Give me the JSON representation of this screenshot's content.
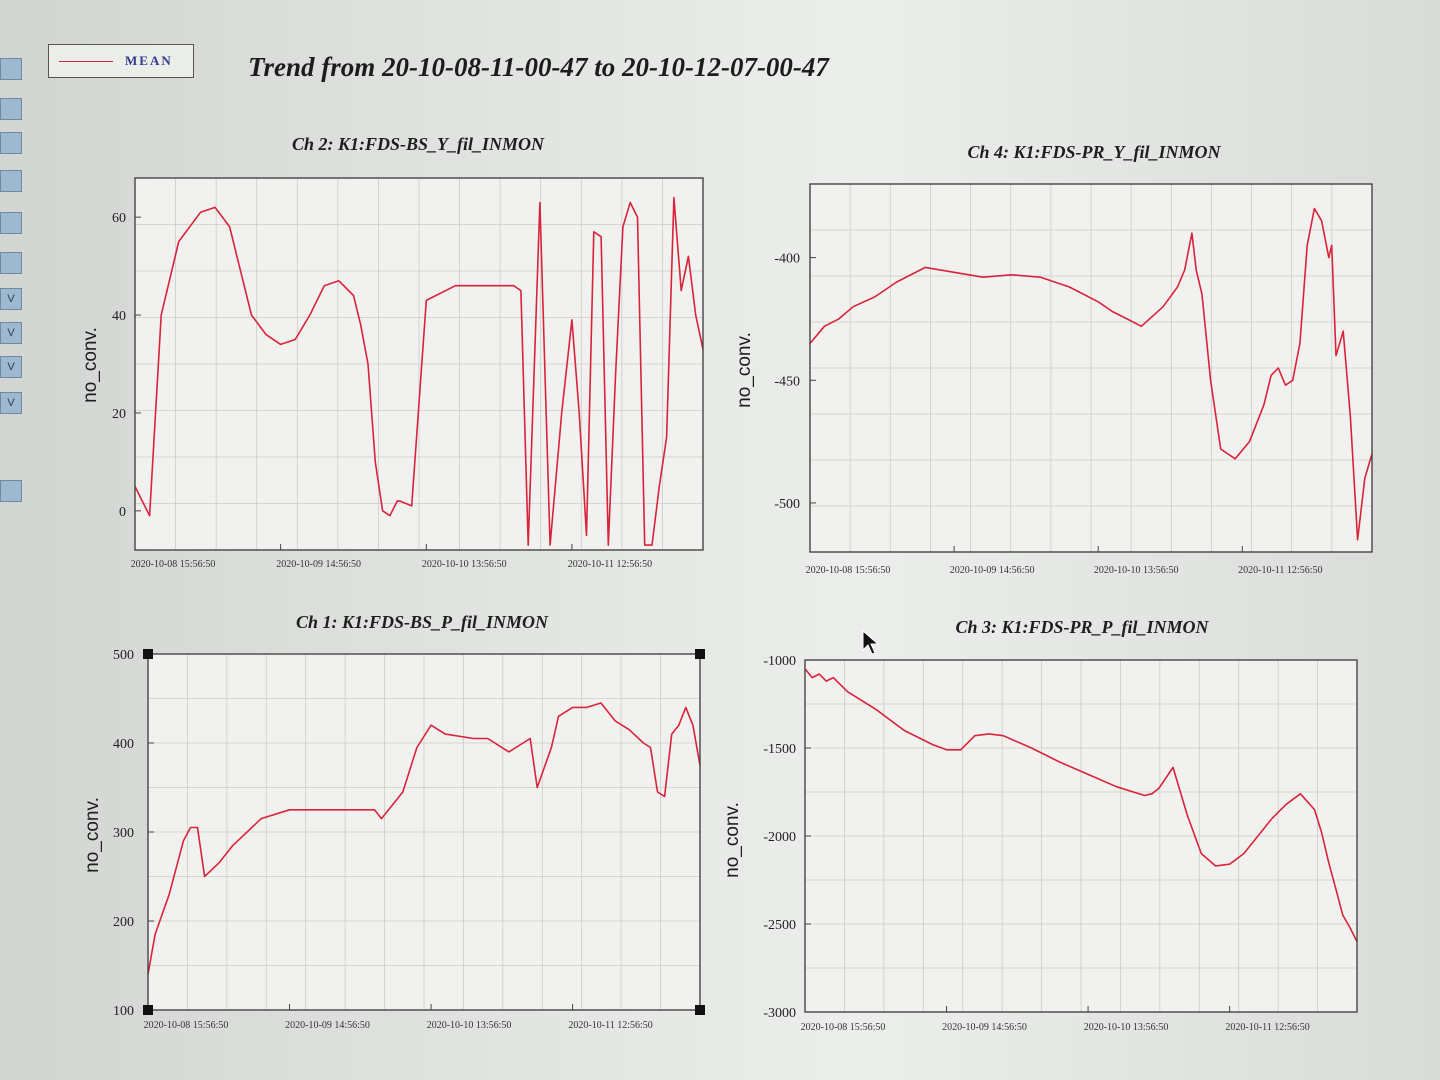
{
  "window": {
    "title": "Trend from 20-10-08-11-00-47 to 20-10-12-07-00-47",
    "legend_label": "MEAN"
  },
  "colors": {
    "series": "#d9233a",
    "frame": "#444444",
    "grid": "#c8ccc8"
  },
  "toolbar": {
    "buttons": [
      "",
      "",
      "",
      "",
      "",
      "",
      "V",
      "V",
      "V",
      "V",
      ""
    ]
  },
  "chart_data": [
    {
      "type": "line",
      "title": "Ch 2: K1:FDS-BS_Y_fil_INMON",
      "ylabel": "no_conv.",
      "xlabel": "",
      "ylim": [
        -8,
        68
      ],
      "yticks": [
        0,
        20,
        40,
        60
      ],
      "xticks": [
        {
          "t": 0.0,
          "label": "2020-10-08 15:56:50"
        },
        {
          "t": 1.0,
          "label": "2020-10-09 14:56:50"
        },
        {
          "t": 2.0,
          "label": "2020-10-10 13:56:50"
        },
        {
          "t": 3.0,
          "label": "2020-10-11 12:56:50"
        }
      ],
      "xlim": [
        0,
        3.9
      ],
      "grid": true,
      "series": [
        {
          "name": "MEAN",
          "x": [
            0,
            0.05,
            0.1,
            0.18,
            0.3,
            0.45,
            0.55,
            0.65,
            0.7,
            0.8,
            0.9,
            1.0,
            1.1,
            1.2,
            1.3,
            1.4,
            1.5,
            1.55,
            1.6,
            1.65,
            1.7,
            1.75,
            1.8,
            1.82,
            1.9,
            2.0,
            2.2,
            2.4,
            2.55,
            2.6,
            2.65,
            2.7,
            2.78,
            2.85,
            2.93,
            3.0,
            3.05,
            3.1,
            3.15,
            3.2,
            3.25,
            3.3,
            3.35,
            3.4,
            3.45,
            3.5,
            3.55,
            3.6,
            3.65,
            3.7,
            3.75,
            3.8,
            3.85,
            3.9
          ],
          "y": [
            5,
            2,
            -1,
            40,
            55,
            61,
            62,
            58,
            52,
            40,
            36,
            34,
            35,
            40,
            46,
            47,
            44,
            38,
            30,
            10,
            0,
            -1,
            2,
            2,
            1,
            43,
            46,
            46,
            46,
            46,
            45,
            -7,
            63,
            -7,
            20,
            39,
            20,
            -5,
            57,
            56,
            -7,
            28,
            58,
            63,
            60,
            -7,
            -7,
            5,
            15,
            64,
            45,
            52,
            40,
            33
          ]
        }
      ]
    },
    {
      "type": "line",
      "title": "Ch 4: K1:FDS-PR_Y_fil_INMON",
      "ylabel": "no_conv.",
      "xlabel": "",
      "ylim": [
        -520,
        -370
      ],
      "yticks": [
        -400,
        -450,
        -500
      ],
      "xticks": [
        {
          "t": 0.0,
          "label": "2020-10-08 15:56:50"
        },
        {
          "t": 1.0,
          "label": "2020-10-09 14:56:50"
        },
        {
          "t": 2.0,
          "label": "2020-10-10 13:56:50"
        },
        {
          "t": 3.0,
          "label": "2020-10-11 12:56:50"
        }
      ],
      "xlim": [
        0,
        3.9
      ],
      "grid": true,
      "series": [
        {
          "name": "MEAN",
          "x": [
            0,
            0.1,
            0.2,
            0.3,
            0.45,
            0.6,
            0.8,
            1.0,
            1.2,
            1.4,
            1.6,
            1.8,
            2.0,
            2.1,
            2.2,
            2.3,
            2.45,
            2.55,
            2.6,
            2.65,
            2.68,
            2.72,
            2.78,
            2.85,
            2.95,
            3.05,
            3.15,
            3.2,
            3.25,
            3.3,
            3.35,
            3.4,
            3.45,
            3.5,
            3.55,
            3.6,
            3.62,
            3.65,
            3.7,
            3.75,
            3.8,
            3.85,
            3.9
          ],
          "y": [
            -435,
            -428,
            -425,
            -420,
            -416,
            -410,
            -404,
            -406,
            -408,
            -407,
            -408,
            -412,
            -418,
            -422,
            -425,
            -428,
            -420,
            -412,
            -405,
            -390,
            -405,
            -415,
            -450,
            -478,
            -482,
            -475,
            -460,
            -448,
            -445,
            -452,
            -450,
            -435,
            -395,
            -380,
            -385,
            -400,
            -395,
            -440,
            -430,
            -465,
            -515,
            -490,
            -480
          ]
        }
      ]
    },
    {
      "type": "line",
      "title": "Ch 1: K1:FDS-BS_P_fil_INMON",
      "ylabel": "no_conv.",
      "xlabel": "",
      "ylim": [
        100,
        500
      ],
      "yticks": [
        100,
        200,
        300,
        400,
        500
      ],
      "xticks": [
        {
          "t": 0.0,
          "label": "2020-10-08 15:56:50"
        },
        {
          "t": 1.0,
          "label": "2020-10-09 14:56:50"
        },
        {
          "t": 2.0,
          "label": "2020-10-10 13:56:50"
        },
        {
          "t": 3.0,
          "label": "2020-10-11 12:56:50"
        }
      ],
      "xlim": [
        0,
        3.9
      ],
      "grid": true,
      "series": [
        {
          "name": "MEAN",
          "x": [
            0,
            0.05,
            0.15,
            0.25,
            0.3,
            0.35,
            0.4,
            0.5,
            0.6,
            0.8,
            1.0,
            1.2,
            1.4,
            1.6,
            1.65,
            1.8,
            1.9,
            2.0,
            2.1,
            2.3,
            2.4,
            2.55,
            2.65,
            2.7,
            2.75,
            2.85,
            2.9,
            3.0,
            3.1,
            3.2,
            3.3,
            3.4,
            3.5,
            3.55,
            3.6,
            3.65,
            3.7,
            3.75,
            3.8,
            3.85,
            3.9
          ],
          "y": [
            140,
            185,
            230,
            290,
            305,
            305,
            250,
            265,
            285,
            315,
            325,
            325,
            325,
            325,
            315,
            345,
            395,
            420,
            410,
            405,
            405,
            390,
            400,
            405,
            350,
            395,
            430,
            440,
            440,
            445,
            425,
            415,
            400,
            395,
            345,
            340,
            410,
            420,
            440,
            420,
            375
          ]
        }
      ]
    },
    {
      "type": "line",
      "title": "Ch 3: K1:FDS-PR_P_fil_INMON",
      "ylabel": "no_conv.",
      "xlabel": "",
      "ylim": [
        -3000,
        -1000
      ],
      "yticks": [
        -1000,
        -1500,
        -2000,
        -2500,
        -3000
      ],
      "xticks": [
        {
          "t": 0.0,
          "label": "2020-10-08 15:56:50"
        },
        {
          "t": 1.0,
          "label": "2020-10-09 14:56:50"
        },
        {
          "t": 2.0,
          "label": "2020-10-10 13:56:50"
        },
        {
          "t": 3.0,
          "label": "2020-10-11 12:56:50"
        }
      ],
      "xlim": [
        0,
        3.9
      ],
      "grid": true,
      "series": [
        {
          "name": "MEAN",
          "x": [
            0,
            0.05,
            0.1,
            0.15,
            0.2,
            0.3,
            0.5,
            0.7,
            0.9,
            1.0,
            1.1,
            1.2,
            1.3,
            1.4,
            1.6,
            1.8,
            2.0,
            2.2,
            2.4,
            2.45,
            2.5,
            2.6,
            2.7,
            2.8,
            2.9,
            3.0,
            3.1,
            3.2,
            3.3,
            3.4,
            3.5,
            3.6,
            3.65,
            3.7,
            3.75,
            3.8,
            3.85,
            3.9
          ],
          "y": [
            -1050,
            -1100,
            -1080,
            -1120,
            -1100,
            -1180,
            -1280,
            -1400,
            -1480,
            -1510,
            -1510,
            -1430,
            -1420,
            -1430,
            -1500,
            -1580,
            -1650,
            -1720,
            -1770,
            -1760,
            -1730,
            -1610,
            -1880,
            -2100,
            -2170,
            -2160,
            -2100,
            -2000,
            -1900,
            -1820,
            -1760,
            -1850,
            -1980,
            -2150,
            -2300,
            -2450,
            -2520,
            -2600
          ]
        }
      ]
    }
  ]
}
